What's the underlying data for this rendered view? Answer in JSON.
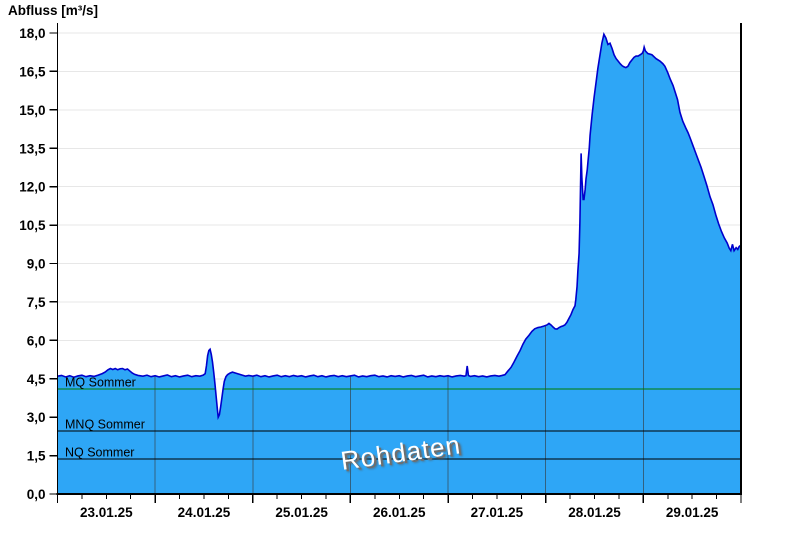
{
  "window": {
    "title": "Abfluss [m³/s]"
  },
  "watermark": {
    "text": "Rohdaten"
  },
  "colors": {
    "background": "#ffffff",
    "area_fill": "#2ea6f6",
    "series_line": "#0000cc",
    "mq_line_green": "#007c00",
    "reference_black": "#000000",
    "horizontal_grid": "#e7e7e7",
    "day_gridline": "#333333",
    "axis": "#000000"
  },
  "chart_data": {
    "type": "area",
    "title": "Abfluss [m³/s]",
    "ylabel": "Abfluss [m³/s]",
    "xlabel": "",
    "series_name": "Rohdaten",
    "x_unit": "hours since 23.01.2025 00:00",
    "x_range_hours": [
      0,
      168
    ],
    "x_tick_labels": [
      "23.01.25",
      "24.01.25",
      "25.01.25",
      "26.01.25",
      "27.01.25",
      "28.01.25",
      "29.01.25"
    ],
    "x_minor_tick_hours": 6,
    "ylim": [
      0,
      18
    ],
    "y_tick_step": 1.5,
    "y_tick_labels": [
      "0,0",
      "1,5",
      "3,0",
      "4,5",
      "6,0",
      "7,5",
      "9,0",
      "10,5",
      "12,0",
      "13,5",
      "15,0",
      "16,5",
      "18,0"
    ],
    "grid": true,
    "decimal_separator": ",",
    "reference_lines": [
      {
        "label": "MQ Sommer",
        "value": 4.1,
        "color": "#007c00"
      },
      {
        "label": "MNQ Sommer",
        "value": 2.46,
        "color": "#000000"
      },
      {
        "label": "NQ Sommer",
        "value": 1.37,
        "color": "#000000"
      }
    ],
    "series": [
      {
        "name": "Rohdaten",
        "points": [
          [
            0,
            4.6
          ],
          [
            1,
            4.63
          ],
          [
            2,
            4.57
          ],
          [
            3,
            4.62
          ],
          [
            4,
            4.56
          ],
          [
            5,
            4.61
          ],
          [
            6,
            4.64
          ],
          [
            7,
            4.58
          ],
          [
            8,
            4.62
          ],
          [
            9,
            4.59
          ],
          [
            10,
            4.64
          ],
          [
            11,
            4.7
          ],
          [
            11.7,
            4.76
          ],
          [
            12.4,
            4.85
          ],
          [
            13,
            4.9
          ],
          [
            13.6,
            4.86
          ],
          [
            14.2,
            4.9
          ],
          [
            14.8,
            4.85
          ],
          [
            15.4,
            4.89
          ],
          [
            16,
            4.9
          ],
          [
            16.6,
            4.85
          ],
          [
            17.2,
            4.88
          ],
          [
            17.8,
            4.8
          ],
          [
            18.4,
            4.72
          ],
          [
            19,
            4.67
          ],
          [
            19.8,
            4.63
          ],
          [
            21,
            4.6
          ],
          [
            22,
            4.64
          ],
          [
            23,
            4.58
          ],
          [
            24,
            4.62
          ],
          [
            25,
            4.57
          ],
          [
            26,
            4.61
          ],
          [
            27,
            4.65
          ],
          [
            28,
            4.58
          ],
          [
            29,
            4.62
          ],
          [
            30,
            4.57
          ],
          [
            31,
            4.61
          ],
          [
            32,
            4.64
          ],
          [
            33,
            4.58
          ],
          [
            34,
            4.62
          ],
          [
            35,
            4.6
          ],
          [
            35.8,
            4.64
          ],
          [
            36.3,
            4.7
          ],
          [
            36.6,
            5.0
          ],
          [
            36.9,
            5.4
          ],
          [
            37.2,
            5.6
          ],
          [
            37.5,
            5.65
          ],
          [
            37.8,
            5.45
          ],
          [
            38.1,
            5.15
          ],
          [
            38.4,
            4.75
          ],
          [
            38.7,
            4.3
          ],
          [
            39,
            3.8
          ],
          [
            39.3,
            3.3
          ],
          [
            39.5,
            3.0
          ],
          [
            39.8,
            3.1
          ],
          [
            40.1,
            3.4
          ],
          [
            40.4,
            3.75
          ],
          [
            40.7,
            4.1
          ],
          [
            41,
            4.4
          ],
          [
            41.4,
            4.58
          ],
          [
            41.8,
            4.66
          ],
          [
            42.4,
            4.72
          ],
          [
            43,
            4.76
          ],
          [
            43.8,
            4.72
          ],
          [
            44.6,
            4.68
          ],
          [
            45.4,
            4.64
          ],
          [
            46.2,
            4.6
          ],
          [
            47,
            4.63
          ],
          [
            48,
            4.6
          ],
          [
            49,
            4.64
          ],
          [
            50,
            4.58
          ],
          [
            51,
            4.62
          ],
          [
            52,
            4.57
          ],
          [
            53,
            4.61
          ],
          [
            54,
            4.64
          ],
          [
            55,
            4.58
          ],
          [
            56,
            4.62
          ],
          [
            57,
            4.58
          ],
          [
            58,
            4.63
          ],
          [
            59,
            4.59
          ],
          [
            60,
            4.62
          ],
          [
            61,
            4.57
          ],
          [
            62,
            4.61
          ],
          [
            63,
            4.64
          ],
          [
            64,
            4.58
          ],
          [
            65,
            4.62
          ],
          [
            66,
            4.57
          ],
          [
            67,
            4.61
          ],
          [
            68,
            4.63
          ],
          [
            69,
            4.58
          ],
          [
            70,
            4.62
          ],
          [
            71,
            4.58
          ],
          [
            72,
            4.61
          ],
          [
            73,
            4.64
          ],
          [
            74,
            4.57
          ],
          [
            75,
            4.61
          ],
          [
            76,
            4.58
          ],
          [
            77,
            4.62
          ],
          [
            78,
            4.64
          ],
          [
            79,
            4.58
          ],
          [
            80,
            4.61
          ],
          [
            81,
            4.57
          ],
          [
            82,
            4.62
          ],
          [
            83,
            4.59
          ],
          [
            84,
            4.62
          ],
          [
            85,
            4.57
          ],
          [
            86,
            4.61
          ],
          [
            87,
            4.63
          ],
          [
            88,
            4.58
          ],
          [
            89,
            4.61
          ],
          [
            90,
            4.64
          ],
          [
            91,
            4.57
          ],
          [
            92,
            4.61
          ],
          [
            93,
            4.58
          ],
          [
            94,
            4.62
          ],
          [
            95,
            4.59
          ],
          [
            96,
            4.62
          ],
          [
            97,
            4.57
          ],
          [
            98,
            4.61
          ],
          [
            99,
            4.63
          ],
          [
            100,
            4.6
          ],
          [
            100.4,
            4.62
          ],
          [
            100.7,
            5.0
          ],
          [
            101,
            4.63
          ],
          [
            101.5,
            4.59
          ],
          [
            102.5,
            4.62
          ],
          [
            103.5,
            4.58
          ],
          [
            104.5,
            4.61
          ],
          [
            105.5,
            4.57
          ],
          [
            106.5,
            4.61
          ],
          [
            107.5,
            4.63
          ],
          [
            108.5,
            4.6
          ],
          [
            109.3,
            4.63
          ],
          [
            110,
            4.66
          ],
          [
            110.7,
            4.8
          ],
          [
            111.5,
            4.95
          ],
          [
            112.2,
            5.15
          ],
          [
            113,
            5.4
          ],
          [
            113.7,
            5.6
          ],
          [
            114.4,
            5.85
          ],
          [
            115.1,
            6.05
          ],
          [
            115.9,
            6.2
          ],
          [
            116.6,
            6.35
          ],
          [
            117.3,
            6.45
          ],
          [
            118.1,
            6.5
          ],
          [
            118.8,
            6.52
          ],
          [
            119.6,
            6.56
          ],
          [
            120.3,
            6.6
          ],
          [
            120.8,
            6.66
          ],
          [
            121.3,
            6.6
          ],
          [
            121.8,
            6.52
          ],
          [
            122.3,
            6.45
          ],
          [
            122.8,
            6.44
          ],
          [
            123.3,
            6.5
          ],
          [
            123.8,
            6.54
          ],
          [
            124.2,
            6.56
          ],
          [
            124.7,
            6.6
          ],
          [
            125.2,
            6.7
          ],
          [
            125.7,
            6.85
          ],
          [
            126.2,
            7.0
          ],
          [
            126.7,
            7.2
          ],
          [
            127.2,
            7.35
          ],
          [
            127.4,
            7.6
          ],
          [
            127.7,
            8.1
          ],
          [
            127.9,
            8.7
          ],
          [
            128.2,
            9.4
          ],
          [
            128.4,
            10.6
          ],
          [
            128.7,
            13.3
          ],
          [
            128.9,
            12.3
          ],
          [
            129.2,
            11.5
          ],
          [
            129.4,
            11.5
          ],
          [
            129.7,
            11.9
          ],
          [
            129.9,
            12.3
          ],
          [
            130.2,
            12.65
          ],
          [
            130.4,
            13.0
          ],
          [
            130.7,
            13.5
          ],
          [
            130.9,
            14.0
          ],
          [
            131.4,
            14.8
          ],
          [
            131.9,
            15.5
          ],
          [
            132.4,
            16.1
          ],
          [
            132.8,
            16.6
          ],
          [
            133.3,
            17.1
          ],
          [
            133.8,
            17.6
          ],
          [
            134.3,
            17.95
          ],
          [
            134.8,
            17.8
          ],
          [
            135.3,
            17.55
          ],
          [
            135.8,
            17.6
          ],
          [
            136.3,
            17.4
          ],
          [
            136.8,
            17.15
          ],
          [
            137.3,
            17.0
          ],
          [
            137.8,
            16.9
          ],
          [
            138.3,
            16.8
          ],
          [
            138.8,
            16.72
          ],
          [
            139.2,
            16.68
          ],
          [
            139.7,
            16.65
          ],
          [
            140.2,
            16.7
          ],
          [
            140.7,
            16.85
          ],
          [
            141.2,
            16.95
          ],
          [
            141.7,
            17.05
          ],
          [
            142.2,
            17.1
          ],
          [
            142.7,
            17.1
          ],
          [
            143.2,
            17.15
          ],
          [
            143.7,
            17.2
          ],
          [
            144,
            17.3
          ],
          [
            144.2,
            17.45
          ],
          [
            144.5,
            17.3
          ],
          [
            145.1,
            17.2
          ],
          [
            146.1,
            17.15
          ],
          [
            147.1,
            17.0
          ],
          [
            148.1,
            16.9
          ],
          [
            148.8,
            16.8
          ],
          [
            149.3,
            16.7
          ],
          [
            150,
            16.45
          ],
          [
            150.6,
            16.2
          ],
          [
            151.3,
            15.95
          ],
          [
            151.8,
            15.7
          ],
          [
            152.4,
            15.4
          ],
          [
            153,
            14.9
          ],
          [
            153.7,
            14.55
          ],
          [
            154.4,
            14.3
          ],
          [
            155,
            14.1
          ],
          [
            155.5,
            13.9
          ],
          [
            156.2,
            13.6
          ],
          [
            156.9,
            13.3
          ],
          [
            157.6,
            13.0
          ],
          [
            158.2,
            12.75
          ],
          [
            158.9,
            12.4
          ],
          [
            159.6,
            12.05
          ],
          [
            160.4,
            11.6
          ],
          [
            161.1,
            11.3
          ],
          [
            161.8,
            10.9
          ],
          [
            162.5,
            10.55
          ],
          [
            163.2,
            10.25
          ],
          [
            163.9,
            10.0
          ],
          [
            164.6,
            9.8
          ],
          [
            165.1,
            9.6
          ],
          [
            165.5,
            9.5
          ],
          [
            165.9,
            9.75
          ],
          [
            166.3,
            9.5
          ],
          [
            166.8,
            9.62
          ],
          [
            167.2,
            9.55
          ],
          [
            167.5,
            9.65
          ],
          [
            167.8,
            9.7
          ]
        ]
      }
    ]
  }
}
